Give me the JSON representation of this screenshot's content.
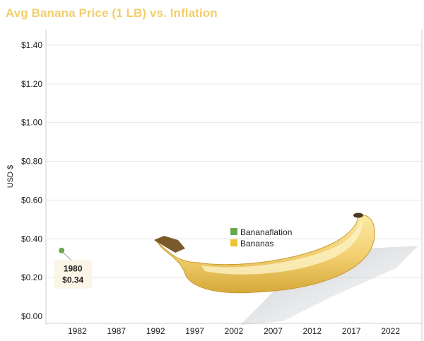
{
  "chart_data": {
    "type": "scatter",
    "title": "Avg Banana Price (1 LB) vs. Inflation",
    "ylabel": "USD $",
    "xlabel": "",
    "ylim": [
      0,
      1.4
    ],
    "xlim": [
      1978,
      2026
    ],
    "y_ticks": [
      "$0.00",
      "$0.20",
      "$0.40",
      "$0.60",
      "$0.80",
      "$1.00",
      "$1.20",
      "$1.40"
    ],
    "x_ticks": [
      "1982",
      "1987",
      "1992",
      "1997",
      "2002",
      "2007",
      "2012",
      "2017",
      "2022"
    ],
    "grid": true,
    "legend_position": "center",
    "series": [
      {
        "name": "Bananaflation",
        "color": "#6aa84f",
        "x": [
          1980
        ],
        "y": [
          0.34
        ]
      },
      {
        "name": "Bananas",
        "color": "#f1c232",
        "x": [],
        "y": []
      }
    ],
    "annotation": {
      "year": "1980",
      "value": "$0.34"
    },
    "decoration": "banana-illustration"
  }
}
